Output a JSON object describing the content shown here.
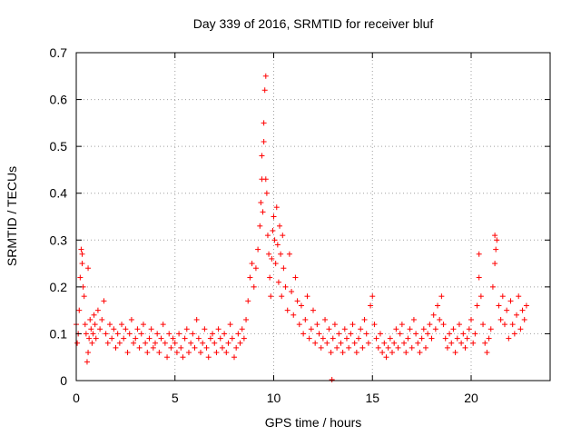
{
  "chart_data": {
    "type": "scatter",
    "title": "Day 339 of 2016, SRMTID for receiver bluf",
    "xlabel": "GPS time / hours",
    "ylabel": "SRMTID / TECUs",
    "xlim": [
      0,
      24
    ],
    "ylim": [
      0,
      0.7
    ],
    "xticks": [
      0,
      5,
      10,
      15,
      20
    ],
    "yticks": [
      0,
      0.1,
      0.2,
      0.3,
      0.4,
      0.5,
      0.6,
      0.7
    ],
    "grid": true,
    "marker": "+",
    "color": "#ff0000",
    "series": [
      {
        "name": "SRMTID",
        "x": [
          0.0,
          0.05,
          0.1,
          0.15,
          0.2,
          0.25,
          0.3,
          0.35,
          0.4,
          0.45,
          0.5,
          0.55,
          0.6,
          0.65,
          0.7,
          0.75,
          0.8,
          0.85,
          0.9,
          0.95,
          1.0,
          1.1,
          1.2,
          1.3,
          1.4,
          1.5,
          1.6,
          1.7,
          1.8,
          1.9,
          2.0,
          2.1,
          2.2,
          2.3,
          2.4,
          2.5,
          2.6,
          2.7,
          2.8,
          2.9,
          3.0,
          3.1,
          3.2,
          3.3,
          3.4,
          3.5,
          3.6,
          3.7,
          3.8,
          3.9,
          4.0,
          4.1,
          4.2,
          4.3,
          4.4,
          4.5,
          4.6,
          4.7,
          4.8,
          4.9,
          5.0,
          5.1,
          5.2,
          5.3,
          5.4,
          5.5,
          5.6,
          5.7,
          5.8,
          5.9,
          6.0,
          6.1,
          6.2,
          6.3,
          6.4,
          6.5,
          6.6,
          6.7,
          6.8,
          6.9,
          7.0,
          7.1,
          7.2,
          7.3,
          7.4,
          7.5,
          7.6,
          7.7,
          7.8,
          7.9,
          8.0,
          8.1,
          8.2,
          8.3,
          8.4,
          8.5,
          8.6,
          8.7,
          8.8,
          8.9,
          9.0,
          9.1,
          9.2,
          9.3,
          9.35,
          9.4,
          9.45,
          9.5,
          9.55,
          9.6,
          9.65,
          9.7,
          9.75,
          9.8,
          9.85,
          9.9,
          9.95,
          10.0,
          10.05,
          10.1,
          10.15,
          10.2,
          10.25,
          10.3,
          10.35,
          10.4,
          10.45,
          10.5,
          10.6,
          10.7,
          10.8,
          10.9,
          11.0,
          11.1,
          11.2,
          11.3,
          11.4,
          11.5,
          11.6,
          11.7,
          11.8,
          11.9,
          12.0,
          12.1,
          12.2,
          12.3,
          12.4,
          12.5,
          12.6,
          12.7,
          12.8,
          12.9,
          13.0,
          13.1,
          13.2,
          13.3,
          13.4,
          13.5,
          13.6,
          13.7,
          13.8,
          13.9,
          14.0,
          14.1,
          14.2,
          14.3,
          14.4,
          14.5,
          14.6,
          14.7,
          14.8,
          14.9,
          15.0,
          15.1,
          15.2,
          15.3,
          15.4,
          15.5,
          15.6,
          15.7,
          15.8,
          15.9,
          16.0,
          16.1,
          16.2,
          16.3,
          16.4,
          16.5,
          16.6,
          16.7,
          16.8,
          16.9,
          17.0,
          17.1,
          17.2,
          17.3,
          17.4,
          17.5,
          17.6,
          17.7,
          17.8,
          17.9,
          18.0,
          18.1,
          18.2,
          18.3,
          18.4,
          18.5,
          18.6,
          18.7,
          18.8,
          18.9,
          19.0,
          19.1,
          19.2,
          19.3,
          19.4,
          19.5,
          19.6,
          19.7,
          19.8,
          19.9,
          20.0,
          20.1,
          20.2,
          20.3,
          20.4,
          20.5,
          20.6,
          20.7,
          20.8,
          20.9,
          21.0,
          21.1,
          21.2,
          21.3,
          21.4,
          21.5,
          21.6,
          21.7,
          21.8,
          21.9,
          22.0,
          22.1,
          22.2,
          22.3,
          22.4,
          22.5,
          22.6,
          22.7,
          22.8,
          12.95,
          0.3,
          0.6,
          9.4,
          9.5,
          9.6,
          21.2,
          21.25,
          20.4
        ],
        "y": [
          0.12,
          0.08,
          0.1,
          0.15,
          0.22,
          0.28,
          0.25,
          0.2,
          0.18,
          0.12,
          0.1,
          0.04,
          0.06,
          0.09,
          0.13,
          0.11,
          0.08,
          0.1,
          0.14,
          0.12,
          0.09,
          0.15,
          0.11,
          0.13,
          0.17,
          0.1,
          0.08,
          0.12,
          0.09,
          0.11,
          0.07,
          0.1,
          0.08,
          0.12,
          0.09,
          0.11,
          0.06,
          0.1,
          0.13,
          0.08,
          0.09,
          0.11,
          0.07,
          0.1,
          0.12,
          0.08,
          0.06,
          0.09,
          0.11,
          0.07,
          0.08,
          0.1,
          0.06,
          0.09,
          0.12,
          0.08,
          0.05,
          0.1,
          0.07,
          0.09,
          0.08,
          0.06,
          0.1,
          0.07,
          0.05,
          0.09,
          0.11,
          0.06,
          0.08,
          0.1,
          0.07,
          0.13,
          0.09,
          0.06,
          0.08,
          0.11,
          0.07,
          0.05,
          0.09,
          0.1,
          0.08,
          0.06,
          0.11,
          0.09,
          0.07,
          0.1,
          0.06,
          0.08,
          0.12,
          0.09,
          0.05,
          0.07,
          0.1,
          0.08,
          0.11,
          0.09,
          0.13,
          0.17,
          0.22,
          0.25,
          0.2,
          0.24,
          0.28,
          0.33,
          0.38,
          0.43,
          0.36,
          0.55,
          0.62,
          0.65,
          0.4,
          0.31,
          0.27,
          0.22,
          0.18,
          0.26,
          0.32,
          0.35,
          0.3,
          0.25,
          0.37,
          0.29,
          0.21,
          0.33,
          0.27,
          0.18,
          0.31,
          0.24,
          0.2,
          0.15,
          0.27,
          0.19,
          0.14,
          0.22,
          0.17,
          0.12,
          0.16,
          0.1,
          0.13,
          0.18,
          0.09,
          0.11,
          0.15,
          0.08,
          0.12,
          0.1,
          0.07,
          0.09,
          0.13,
          0.08,
          0.11,
          0.06,
          0.09,
          0.12,
          0.07,
          0.1,
          0.08,
          0.06,
          0.11,
          0.09,
          0.07,
          0.1,
          0.12,
          0.08,
          0.06,
          0.09,
          0.11,
          0.07,
          0.13,
          0.1,
          0.08,
          0.16,
          0.18,
          0.12,
          0.09,
          0.07,
          0.1,
          0.06,
          0.08,
          0.05,
          0.07,
          0.09,
          0.06,
          0.08,
          0.11,
          0.07,
          0.1,
          0.12,
          0.08,
          0.06,
          0.09,
          0.11,
          0.07,
          0.13,
          0.1,
          0.08,
          0.06,
          0.09,
          0.11,
          0.07,
          0.1,
          0.12,
          0.09,
          0.14,
          0.11,
          0.16,
          0.13,
          0.18,
          0.12,
          0.09,
          0.07,
          0.1,
          0.08,
          0.11,
          0.06,
          0.09,
          0.12,
          0.08,
          0.1,
          0.07,
          0.09,
          0.11,
          0.13,
          0.08,
          0.1,
          0.16,
          0.22,
          0.18,
          0.12,
          0.08,
          0.06,
          0.09,
          0.11,
          0.2,
          0.25,
          0.3,
          0.16,
          0.13,
          0.18,
          0.12,
          0.15,
          0.09,
          0.17,
          0.12,
          0.1,
          0.14,
          0.18,
          0.11,
          0.15,
          0.13,
          0.16,
          0.002,
          0.27,
          0.24,
          0.48,
          0.51,
          0.43,
          0.31,
          0.28,
          0.27
        ]
      }
    ]
  }
}
